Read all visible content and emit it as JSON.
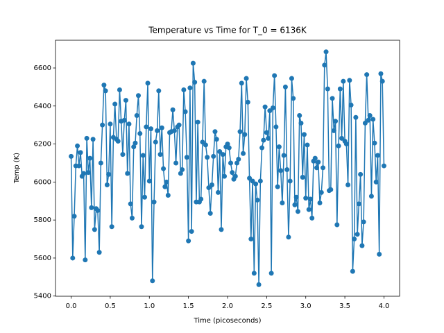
{
  "chart_data": {
    "type": "line",
    "title": "Temperature vs Time for T_0 = 6136K",
    "x_label": "Time (picoseconds)",
    "y_label": "Temp (K)",
    "x": [
      0,
      0.02,
      0.04,
      0.06,
      0.08,
      0.1,
      0.12,
      0.14,
      0.16,
      0.18,
      0.2,
      0.22,
      0.24,
      0.26,
      0.28,
      0.3,
      0.32,
      0.34,
      0.36,
      0.38,
      0.4,
      0.42,
      0.44,
      0.46,
      0.48,
      0.5,
      0.52,
      0.54,
      0.56,
      0.58,
      0.6,
      0.62,
      0.64,
      0.66,
      0.68,
      0.7,
      0.72,
      0.74,
      0.76,
      0.78,
      0.8,
      0.82,
      0.84,
      0.86,
      0.88,
      0.9,
      0.92,
      0.94,
      0.96,
      0.98,
      1,
      1.02,
      1.04,
      1.06,
      1.08,
      1.1,
      1.12,
      1.14,
      1.16,
      1.18,
      1.2,
      1.22,
      1.24,
      1.26,
      1.28,
      1.3,
      1.32,
      1.34,
      1.36,
      1.38,
      1.4,
      1.42,
      1.44,
      1.46,
      1.48,
      1.5,
      1.52,
      1.54,
      1.56,
      1.58,
      1.6,
      1.62,
      1.64,
      1.66,
      1.68,
      1.7,
      1.72,
      1.74,
      1.76,
      1.78,
      1.8,
      1.82,
      1.84,
      1.86,
      1.88,
      1.9,
      1.92,
      1.94,
      1.96,
      1.98,
      2,
      2.02,
      2.04,
      2.06,
      2.08,
      2.1,
      2.12,
      2.14,
      2.16,
      2.18,
      2.2,
      2.22,
      2.24,
      2.26,
      2.28,
      2.3,
      2.32,
      2.34,
      2.36,
      2.38,
      2.4,
      2.42,
      2.44,
      2.46,
      2.48,
      2.5,
      2.52,
      2.54,
      2.56,
      2.58,
      2.6,
      2.62,
      2.64,
      2.66,
      2.68,
      2.7,
      2.72,
      2.74,
      2.76,
      2.78,
      2.8,
      2.82,
      2.84,
      2.86,
      2.88,
      2.9,
      2.92,
      2.94,
      2.96,
      2.98,
      3,
      3.02,
      3.04,
      3.06,
      3.08,
      3.1,
      3.12,
      3.14,
      3.16,
      3.18,
      3.2,
      3.22,
      3.24,
      3.26,
      3.28,
      3.3,
      3.32,
      3.34,
      3.36,
      3.38,
      3.4,
      3.42,
      3.44,
      3.46,
      3.48,
      3.5,
      3.52,
      3.54,
      3.56,
      3.58,
      3.6,
      3.62,
      3.64,
      3.66,
      3.68,
      3.7,
      3.72,
      3.74,
      3.76,
      3.78,
      3.8,
      3.82,
      3.84,
      3.86,
      3.88,
      3.9,
      3.92,
      3.94,
      3.96,
      3.98,
      4
    ],
    "series": [
      {
        "name": "Temp",
        "color": "#1f77b4",
        "values": [
          6135,
          5600,
          5820,
          6085,
          6190,
          6085,
          6155,
          6030,
          6045,
          5590,
          6230,
          6050,
          6125,
          5865,
          6225,
          5750,
          5860,
          5850,
          5630,
          6100,
          6300,
          6510,
          6480,
          5985,
          6040,
          6305,
          5765,
          6235,
          6410,
          6225,
          6215,
          6485,
          6320,
          6145,
          6325,
          6430,
          6045,
          6305,
          5885,
          5810,
          6185,
          6205,
          6350,
          6455,
          6255,
          5765,
          6140,
          5920,
          6290,
          6520,
          6005,
          6280,
          5480,
          5895,
          6210,
          6270,
          6480,
          6145,
          6285,
          6070,
          5975,
          6000,
          5930,
          6260,
          6265,
          6380,
          6270,
          6100,
          6290,
          6300,
          6045,
          6065,
          6485,
          6370,
          6130,
          5690,
          6495,
          5740,
          6625,
          6525,
          5895,
          6315,
          5895,
          5910,
          6210,
          6530,
          6195,
          6130,
          5970,
          5835,
          5985,
          6135,
          6265,
          6225,
          5945,
          6160,
          5750,
          6145,
          6030,
          6185,
          6200,
          6180,
          6100,
          6050,
          6015,
          6030,
          6100,
          6120,
          6265,
          6520,
          6150,
          6250,
          6545,
          6420,
          6020,
          5700,
          6005,
          5520,
          5990,
          5905,
          5460,
          6005,
          6180,
          6220,
          6395,
          6260,
          6230,
          6375,
          5520,
          6390,
          6560,
          6290,
          5975,
          6185,
          6060,
          5890,
          6140,
          6500,
          6065,
          5710,
          6005,
          6545,
          6440,
          5880,
          5920,
          5845,
          6350,
          6310,
          6025,
          6250,
          5915,
          6195,
          5855,
          5910,
          5810,
          6110,
          6125,
          6075,
          6105,
          5890,
          5945,
          6075,
          6615,
          6685,
          6490,
          5955,
          5960,
          6440,
          6270,
          6320,
          5775,
          6190,
          6490,
          6230,
          6530,
          6215,
          6200,
          5985,
          6535,
          6405,
          5530,
          5700,
          6340,
          5725,
          5885,
          6040,
          5665,
          5790,
          6310,
          6565,
          6325,
          6350,
          5925,
          6330,
          6205,
          6000,
          6140,
          5620,
          6570,
          6530,
          6085
        ]
      }
    ],
    "xlim": [
      -0.2,
      4.2
    ],
    "ylim": [
      5399,
      6746
    ],
    "xticks": [
      {
        "value": 0,
        "label": "0.0"
      },
      {
        "value": 0.5,
        "label": "0.5"
      },
      {
        "value": 1,
        "label": "1.0"
      },
      {
        "value": 1.5,
        "label": "1.5"
      },
      {
        "value": 2,
        "label": "2.0"
      },
      {
        "value": 2.5,
        "label": "2.5"
      },
      {
        "value": 3,
        "label": "3.0"
      },
      {
        "value": 3.5,
        "label": "3.5"
      },
      {
        "value": 4,
        "label": "4.0"
      }
    ],
    "yticks": [
      5400,
      5600,
      5800,
      6000,
      6200,
      6400,
      6600
    ]
  }
}
